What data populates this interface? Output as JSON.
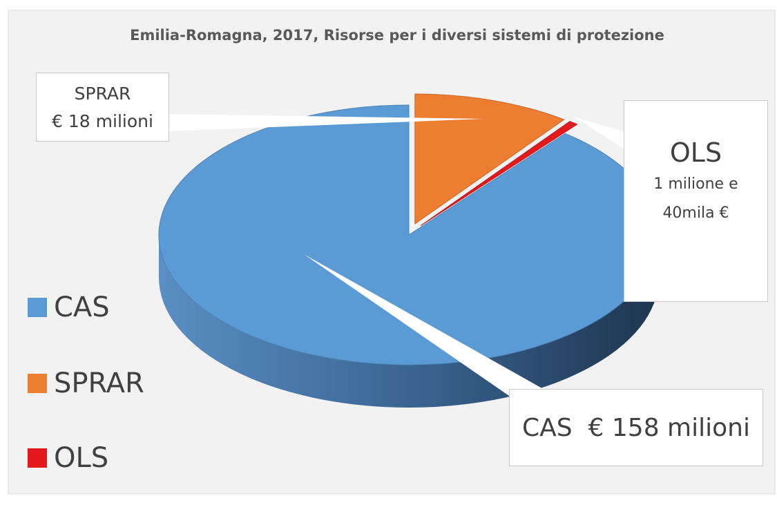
{
  "chart_data": {
    "type": "pie3d",
    "title": "Emilia-Romagna, 2017, Risorse per i diversi sistemi di protezione",
    "categories": [
      "CAS",
      "SPRAR",
      "OLS"
    ],
    "values": [
      158,
      18,
      1.04
    ],
    "value_labels": [
      "€ 158 milioni",
      "€ 18 milioni",
      "1 milione e 40mila €"
    ],
    "colors": [
      "#5b9bd5",
      "#ed7d31",
      "#e3191c"
    ],
    "legend": "left"
  }
}
